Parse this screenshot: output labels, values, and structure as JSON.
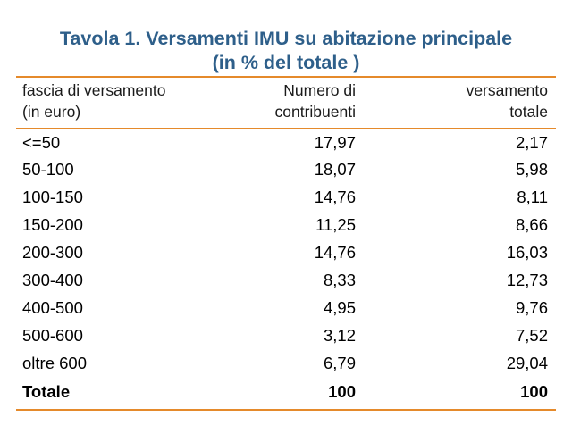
{
  "title_line1": "Tavola 1.  Versamenti IMU su abitazione principale",
  "title_line2": "(in % del totale )",
  "header": {
    "col1_line1": "fascia di versamento",
    "col1_line2": "(in euro)",
    "col2_line1": "Numero di",
    "col2_line2": "contribuenti",
    "col3_line1": "versamento",
    "col3_line2": "totale"
  },
  "rows": [
    {
      "band": "<=50",
      "contributors": "17,97",
      "payment": "2,17"
    },
    {
      "band": "50-100",
      "contributors": "18,07",
      "payment": "5,98"
    },
    {
      "band": "100-150",
      "contributors": "14,76",
      "payment": "8,11"
    },
    {
      "band": "150-200",
      "contributors": "11,25",
      "payment": "8,66"
    },
    {
      "band": "200-300",
      "contributors": "14,76",
      "payment": "16,03"
    },
    {
      "band": "300-400",
      "contributors": "8,33",
      "payment": "12,73"
    },
    {
      "band": "400-500",
      "contributors": "4,95",
      "payment": "9,76"
    },
    {
      "band": "500-600",
      "contributors": "3,12",
      "payment": "7,52"
    },
    {
      "band": "oltre 600",
      "contributors": "6,79",
      "payment": "29,04"
    }
  ],
  "total": {
    "band": "Totale",
    "contributors": "100",
    "payment": "100"
  },
  "colors": {
    "title": "#2e5f8a",
    "rules": "#e58a2b"
  }
}
